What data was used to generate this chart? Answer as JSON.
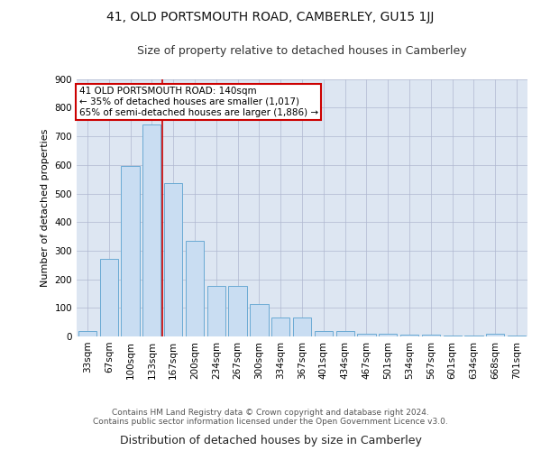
{
  "title": "41, OLD PORTSMOUTH ROAD, CAMBERLEY, GU15 1JJ",
  "subtitle": "Size of property relative to detached houses in Camberley",
  "xlabel": "Distribution of detached houses by size in Camberley",
  "ylabel": "Number of detached properties",
  "footer_line1": "Contains HM Land Registry data © Crown copyright and database right 2024.",
  "footer_line2": "Contains public sector information licensed under the Open Government Licence v3.0.",
  "categories": [
    "33sqm",
    "67sqm",
    "100sqm",
    "133sqm",
    "167sqm",
    "200sqm",
    "234sqm",
    "267sqm",
    "300sqm",
    "334sqm",
    "367sqm",
    "401sqm",
    "434sqm",
    "467sqm",
    "501sqm",
    "534sqm",
    "567sqm",
    "601sqm",
    "634sqm",
    "668sqm",
    "701sqm"
  ],
  "values": [
    20,
    270,
    595,
    740,
    535,
    335,
    178,
    178,
    115,
    67,
    67,
    20,
    20,
    10,
    10,
    7,
    7,
    2,
    2,
    8,
    2
  ],
  "bar_color": "#c9ddf2",
  "bar_edge_color": "#6aaad4",
  "grid_color": "#b0b8d0",
  "bg_color": "#dde6f2",
  "red_line_color": "#cc0000",
  "annotation_line1": "41 OLD PORTSMOUTH ROAD: 140sqm",
  "annotation_line2": "← 35% of detached houses are smaller (1,017)",
  "annotation_line3": "65% of semi-detached houses are larger (1,886) →",
  "annotation_box_facecolor": "#ffffff",
  "annotation_box_edgecolor": "#cc0000",
  "ylim_max": 900,
  "yticks": [
    0,
    100,
    200,
    300,
    400,
    500,
    600,
    700,
    800,
    900
  ],
  "title_fontsize": 10,
  "subtitle_fontsize": 9,
  "xlabel_fontsize": 9,
  "ylabel_fontsize": 8,
  "tick_fontsize": 7.5,
  "annot_fontsize": 7.5,
  "footer_fontsize": 6.5,
  "red_line_x": 3.5
}
